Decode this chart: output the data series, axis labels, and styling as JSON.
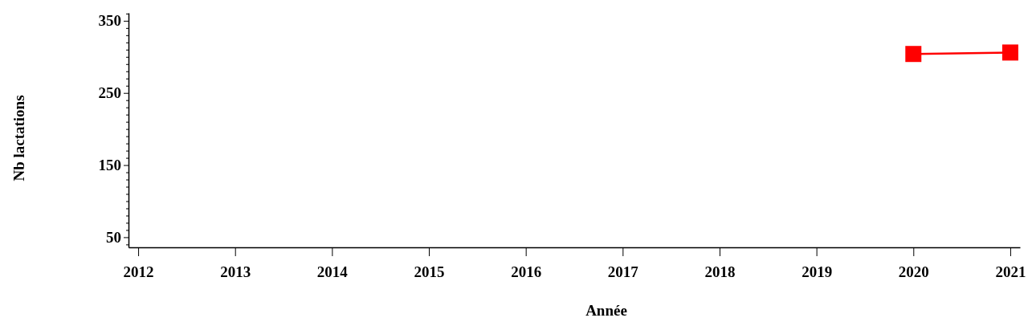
{
  "chart_data": {
    "type": "line",
    "xlabel": "Année",
    "ylabel": "Nb lactations",
    "x": [
      2020,
      2021
    ],
    "series": [
      {
        "color": "#ff0000",
        "values": [
          304,
          306
        ]
      }
    ],
    "marker": "square",
    "line_style": "solid",
    "grid": false,
    "xlim": [
      2011.9,
      2021.1
    ],
    "xticks": [
      2012,
      2013,
      2014,
      2015,
      2016,
      2017,
      2018,
      2019,
      2020,
      2021
    ],
    "ylim": [
      36,
      361
    ],
    "yticks": [
      {
        "value": 40,
        "label": null
      },
      50,
      {
        "value": 60,
        "label": null
      },
      {
        "value": 70,
        "label": null
      },
      {
        "value": 80,
        "label": null
      },
      {
        "value": 90,
        "label": null
      },
      {
        "value": 100,
        "label": null
      },
      {
        "value": 110,
        "label": null
      },
      {
        "value": 120,
        "label": null
      },
      {
        "value": 130,
        "label": null
      },
      {
        "value": 140,
        "label": null
      },
      150,
      {
        "value": 160,
        "label": null
      },
      {
        "value": 170,
        "label": null
      },
      {
        "value": 180,
        "label": null
      },
      {
        "value": 190,
        "label": null
      },
      {
        "value": 200,
        "label": null
      },
      {
        "value": 210,
        "label": null
      },
      {
        "value": 220,
        "label": null
      },
      {
        "value": 230,
        "label": null
      },
      {
        "value": 240,
        "label": null
      },
      250,
      {
        "value": 260,
        "label": null
      },
      {
        "value": 270,
        "label": null
      },
      {
        "value": 280,
        "label": null
      },
      {
        "value": 290,
        "label": null
      },
      {
        "value": 300,
        "label": null
      },
      {
        "value": 310,
        "label": null
      },
      {
        "value": 320,
        "label": null
      },
      {
        "value": 330,
        "label": null
      },
      {
        "value": 340,
        "label": null
      },
      350,
      {
        "value": 360,
        "label": null
      }
    ]
  }
}
